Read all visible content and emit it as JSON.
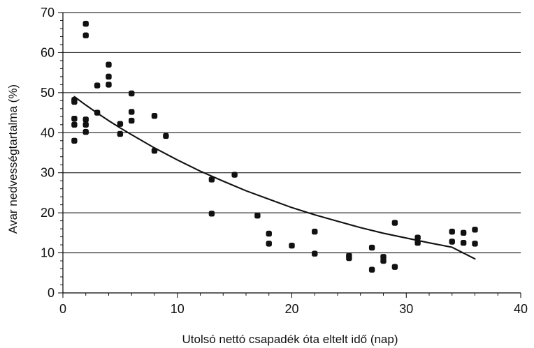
{
  "chart_data": {
    "type": "scatter",
    "title": "",
    "xlabel": "Utolsó nettó csapadék óta eltelt idő (nap)",
    "ylabel": "Avar nedvességtartalma (%)",
    "xlim": [
      0,
      40
    ],
    "ylim": [
      0,
      70
    ],
    "x_ticks": [
      0,
      10,
      20,
      30,
      40
    ],
    "y_ticks": [
      0,
      10,
      20,
      30,
      40,
      50,
      60,
      70
    ],
    "grid": "horizontal",
    "colors": {
      "points": "#111111",
      "line": "#111111",
      "grid": "#000000"
    },
    "series": [
      {
        "type": "scatter",
        "points": [
          {
            "x": 1,
            "y": 48.2
          },
          {
            "x": 1,
            "y": 47.7
          },
          {
            "x": 1,
            "y": 43.5
          },
          {
            "x": 1,
            "y": 42
          },
          {
            "x": 1,
            "y": 38
          },
          {
            "x": 2,
            "y": 67.2
          },
          {
            "x": 2,
            "y": 64.3
          },
          {
            "x": 2,
            "y": 43.3
          },
          {
            "x": 2,
            "y": 42
          },
          {
            "x": 2,
            "y": 40.2
          },
          {
            "x": 3,
            "y": 51.8
          },
          {
            "x": 3,
            "y": 45
          },
          {
            "x": 4,
            "y": 57
          },
          {
            "x": 4,
            "y": 54
          },
          {
            "x": 4,
            "y": 52
          },
          {
            "x": 5,
            "y": 42.2
          },
          {
            "x": 5,
            "y": 39.7
          },
          {
            "x": 6,
            "y": 49.8
          },
          {
            "x": 6,
            "y": 45.2
          },
          {
            "x": 6,
            "y": 43
          },
          {
            "x": 8,
            "y": 44.2
          },
          {
            "x": 8,
            "y": 35.5
          },
          {
            "x": 9,
            "y": 39.2
          },
          {
            "x": 13,
            "y": 28.3
          },
          {
            "x": 13,
            "y": 19.8
          },
          {
            "x": 15,
            "y": 29.5
          },
          {
            "x": 17,
            "y": 19.3
          },
          {
            "x": 18,
            "y": 14.8
          },
          {
            "x": 18,
            "y": 12.3
          },
          {
            "x": 20,
            "y": 11.8
          },
          {
            "x": 22,
            "y": 15.3
          },
          {
            "x": 22,
            "y": 9.8
          },
          {
            "x": 25,
            "y": 9.3
          },
          {
            "x": 25,
            "y": 8.7
          },
          {
            "x": 27,
            "y": 11.3
          },
          {
            "x": 27,
            "y": 5.8
          },
          {
            "x": 28,
            "y": 9
          },
          {
            "x": 28,
            "y": 8
          },
          {
            "x": 29,
            "y": 17.5
          },
          {
            "x": 29,
            "y": 6.5
          },
          {
            "x": 31,
            "y": 13.8
          },
          {
            "x": 31,
            "y": 12.5
          },
          {
            "x": 34,
            "y": 15.3
          },
          {
            "x": 34,
            "y": 12.8
          },
          {
            "x": 35,
            "y": 15
          },
          {
            "x": 35,
            "y": 12.5
          },
          {
            "x": 36,
            "y": 15.8
          },
          {
            "x": 36,
            "y": 12.3
          }
        ]
      },
      {
        "type": "line",
        "points": [
          {
            "x": 1,
            "y": 49
          },
          {
            "x": 2,
            "y": 46.9
          },
          {
            "x": 3,
            "y": 44.9
          },
          {
            "x": 4,
            "y": 43.0
          },
          {
            "x": 5,
            "y": 41.2
          },
          {
            "x": 6,
            "y": 39.5
          },
          {
            "x": 8,
            "y": 36.2
          },
          {
            "x": 10,
            "y": 33.2
          },
          {
            "x": 12,
            "y": 30.4
          },
          {
            "x": 14,
            "y": 27.9
          },
          {
            "x": 16,
            "y": 25.5
          },
          {
            "x": 18,
            "y": 23.4
          },
          {
            "x": 20,
            "y": 21.3
          },
          {
            "x": 22,
            "y": 19.5
          },
          {
            "x": 24,
            "y": 17.9
          },
          {
            "x": 26,
            "y": 16.3
          },
          {
            "x": 28,
            "y": 14.9
          },
          {
            "x": 30,
            "y": 13.7
          },
          {
            "x": 32,
            "y": 12.5
          },
          {
            "x": 34,
            "y": 11.4
          },
          {
            "x": 36,
            "y": 8.5
          }
        ]
      }
    ]
  }
}
